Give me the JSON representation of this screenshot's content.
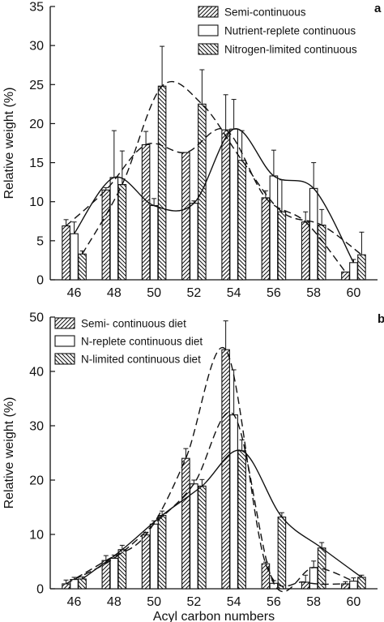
{
  "chart_data": [
    {
      "panel": "a",
      "type": "bar",
      "xlabel": "",
      "ylabel": "Relative weight (%)",
      "ylim": [
        0,
        35
      ],
      "yticks": [
        0,
        5,
        10,
        15,
        20,
        25,
        30,
        35
      ],
      "xticks": [
        46,
        48,
        50,
        52,
        54,
        56,
        58,
        60
      ],
      "legend_position": "top-right",
      "series": [
        {
          "name": "Semi-continuous",
          "pattern": "hatch-fwd",
          "x": [
            46,
            48,
            50,
            52,
            54,
            56,
            58,
            60
          ],
          "values": [
            6.9,
            11.5,
            17.3,
            16.3,
            19.2,
            10.5,
            7.4,
            1.0
          ],
          "errors": [
            0.8,
            0.3,
            1.7,
            0.0,
            4.5,
            0.9,
            1.3,
            0.0
          ]
        },
        {
          "name": "Nutrient-replete continuous",
          "pattern": "plain",
          "x": [
            46,
            48,
            50,
            52,
            54,
            56,
            58,
            60
          ],
          "values": [
            5.9,
            13.1,
            9.5,
            9.8,
            19.3,
            13.3,
            11.7,
            2.2
          ],
          "errors": [
            1.5,
            6.0,
            0.9,
            0.3,
            3.8,
            3.3,
            3.3,
            0.4
          ]
        },
        {
          "name": "Nitrogen-limited continuous",
          "pattern": "hatch-back",
          "x": [
            46,
            48,
            50,
            52,
            54,
            56,
            58,
            60
          ],
          "values": [
            3.3,
            12.2,
            24.8,
            22.5,
            15.3,
            8.7,
            7.0,
            3.2
          ],
          "errors": [
            0.4,
            4.3,
            5.1,
            4.4,
            3.8,
            4.1,
            2.0,
            2.9
          ]
        }
      ]
    },
    {
      "panel": "b",
      "type": "bar",
      "xlabel": "Acyl carbon numbers",
      "ylabel": "Relative weight (%)",
      "ylim": [
        0,
        50
      ],
      "yticks": [
        0,
        10,
        20,
        30,
        40,
        50
      ],
      "xticks": [
        46,
        48,
        50,
        52,
        54,
        56,
        58,
        60
      ],
      "legend_position": "top-left",
      "series": [
        {
          "name": "Semi- continuous diet",
          "pattern": "hatch-fwd",
          "x": [
            46,
            48,
            50,
            52,
            54,
            56,
            58,
            60
          ],
          "values": [
            0.9,
            5.2,
            9.9,
            24.0,
            44.0,
            4.6,
            1.2,
            0.9
          ],
          "errors": [
            0.7,
            0.9,
            0.5,
            1.8,
            5.3,
            0.3,
            1.3,
            0.4
          ]
        },
        {
          "name": "N-replete continuous diet",
          "pattern": "plain",
          "x": [
            46,
            48,
            50,
            52,
            54,
            56,
            58,
            60
          ],
          "values": [
            1.7,
            5.6,
            11.9,
            19.3,
            32.0,
            1.0,
            3.9,
            1.4
          ],
          "errors": [
            0.4,
            0.6,
            0.6,
            0.7,
            8.3,
            0.5,
            1.2,
            0.6
          ]
        },
        {
          "name": "N-limited continuous diet",
          "pattern": "hatch-back",
          "x": [
            46,
            48,
            50,
            52,
            54,
            56,
            58,
            60
          ],
          "values": [
            1.8,
            7.2,
            13.5,
            18.9,
            25.4,
            13.2,
            7.5,
            2.1
          ],
          "errors": [
            0.4,
            0.8,
            0.8,
            1.2,
            2.0,
            0.8,
            1.0,
            0.4
          ]
        }
      ]
    }
  ]
}
